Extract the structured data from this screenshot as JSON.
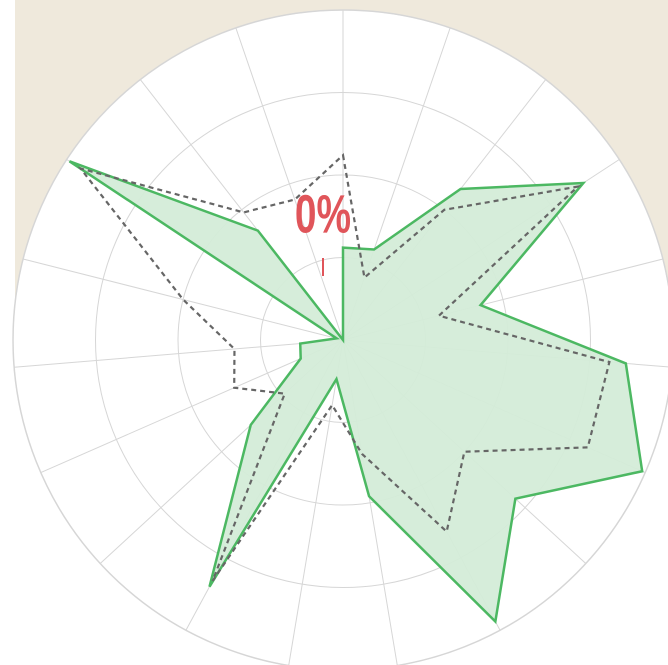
{
  "chart_data": {
    "type": "radar",
    "annotation": "0%",
    "rlim": [
      0,
      100
    ],
    "rticks": [
      25,
      50,
      75,
      100
    ],
    "grid": true,
    "series": [
      {
        "color": "#4cb862",
        "fill": "#d4ecd8",
        "line_style": "solid",
        "values": [
          28,
          29,
          58,
          87,
          43,
          86,
          99,
          71,
          97,
          48,
          12,
          85,
          38,
          14,
          13,
          2,
          99,
          42,
          0
        ]
      },
      {
        "color": "#666666",
        "line_style": "dashed",
        "values": [
          56,
          20,
          50,
          85,
          30,
          81,
          81,
          50,
          66,
          35,
          20,
          83,
          24,
          36,
          33,
          50,
          95,
          49,
          45
        ]
      }
    ]
  }
}
